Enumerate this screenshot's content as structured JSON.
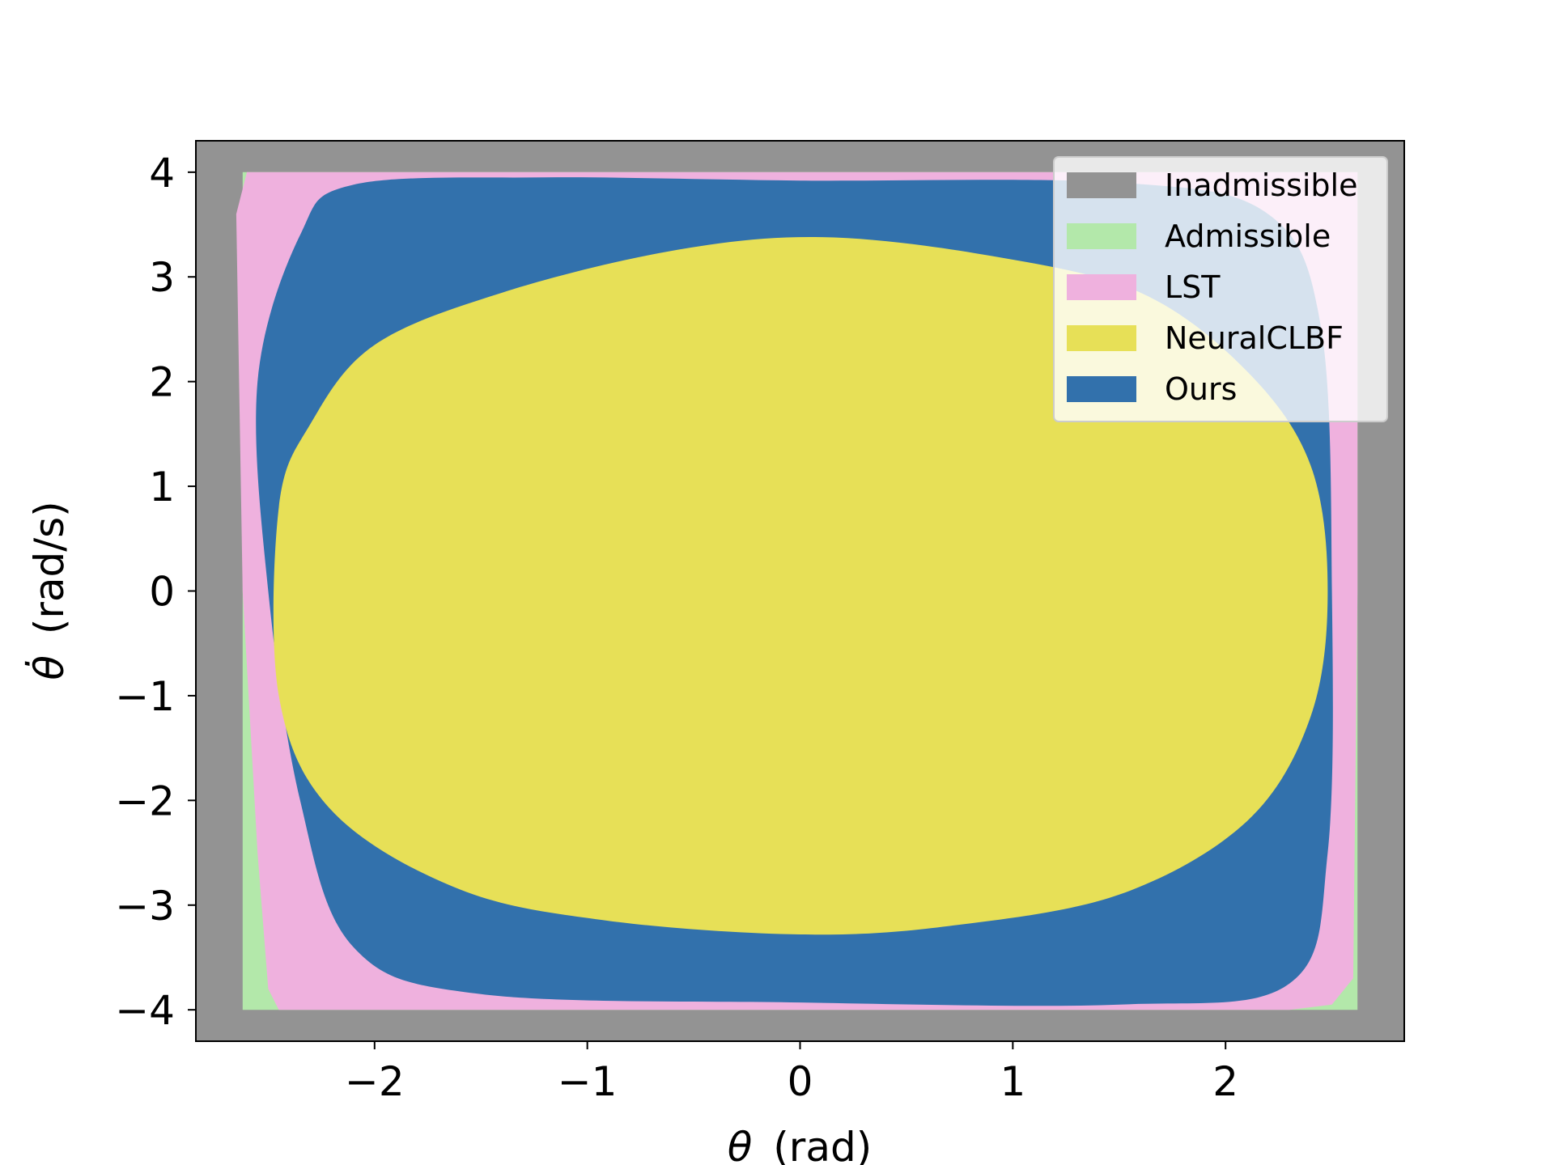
{
  "chart_data": {
    "type": "area",
    "title": "",
    "xlabel": "(rad)",
    "xlabel_symbol": "θ",
    "ylabel": "(rad/s)",
    "ylabel_symbol": "θ̇",
    "xlim": [
      -2.84,
      2.84
    ],
    "ylim": [
      -4.3,
      4.3
    ],
    "x_ticks": [
      -2,
      -1,
      0,
      1,
      2
    ],
    "x_tick_labels": [
      "−2",
      "−1",
      "0",
      "1",
      "2"
    ],
    "y_ticks": [
      4,
      3,
      2,
      1,
      0,
      -1,
      -2,
      -3,
      -4
    ],
    "y_tick_labels": [
      "4",
      "3",
      "2",
      "1",
      "0",
      "−1",
      "−2",
      "−3",
      "−4"
    ],
    "grid": false,
    "legend_position": "top-right",
    "series": [
      {
        "name": "Inadmissible",
        "color": "#939393",
        "region": [
          [
            -2.84,
            -4.3
          ],
          [
            2.84,
            -4.3
          ],
          [
            2.84,
            4.3
          ],
          [
            -2.84,
            4.3
          ]
        ]
      },
      {
        "name": "Admissible",
        "color": "#b3e8aa",
        "region": [
          [
            -2.62,
            -4.0
          ],
          [
            2.62,
            -4.0
          ],
          [
            2.62,
            4.0
          ],
          [
            -2.62,
            4.0
          ]
        ]
      },
      {
        "name": "LST",
        "color": "#efb1de",
        "region": [
          [
            -2.45,
            -4.0
          ],
          [
            2.3,
            -4.0
          ],
          [
            2.5,
            -3.95
          ],
          [
            2.6,
            -3.7
          ],
          [
            2.62,
            0
          ],
          [
            2.62,
            4.0
          ],
          [
            -2.6,
            4.0
          ],
          [
            -2.65,
            3.6
          ],
          [
            -2.62,
            0
          ],
          [
            -2.55,
            -2.5
          ],
          [
            -2.5,
            -3.8
          ]
        ]
      },
      {
        "name": "Ours",
        "color": "#3271ac",
        "region": [
          [
            -2.35,
            3.4
          ],
          [
            -2.1,
            3.88
          ],
          [
            -1.2,
            3.95
          ],
          [
            0.0,
            3.92
          ],
          [
            1.5,
            3.9
          ],
          [
            2.2,
            3.6
          ],
          [
            2.45,
            2.5
          ],
          [
            2.5,
            0.0
          ],
          [
            2.48,
            -2.5
          ],
          [
            2.3,
            -3.75
          ],
          [
            1.5,
            -3.95
          ],
          [
            0.0,
            -3.93
          ],
          [
            -1.5,
            -3.85
          ],
          [
            -2.1,
            -3.4
          ],
          [
            -2.35,
            -2.0
          ],
          [
            -2.5,
            0.0
          ],
          [
            -2.55,
            2.0
          ]
        ]
      },
      {
        "name": "NeuralCLBF",
        "color": "#e7e057",
        "region": [
          [
            -2.0,
            2.35
          ],
          [
            -1.4,
            2.85
          ],
          [
            -0.6,
            3.25
          ],
          [
            0.1,
            3.38
          ],
          [
            0.9,
            3.2
          ],
          [
            1.6,
            2.85
          ],
          [
            2.1,
            2.1
          ],
          [
            2.4,
            1.2
          ],
          [
            2.48,
            0.0
          ],
          [
            2.4,
            -1.2
          ],
          [
            2.1,
            -2.2
          ],
          [
            1.5,
            -2.9
          ],
          [
            0.7,
            -3.2
          ],
          [
            0.0,
            -3.28
          ],
          [
            -0.9,
            -3.15
          ],
          [
            -1.6,
            -2.85
          ],
          [
            -2.2,
            -2.1
          ],
          [
            -2.45,
            -1.0
          ],
          [
            -2.45,
            0.8
          ],
          [
            -2.3,
            1.6
          ]
        ]
      }
    ]
  }
}
